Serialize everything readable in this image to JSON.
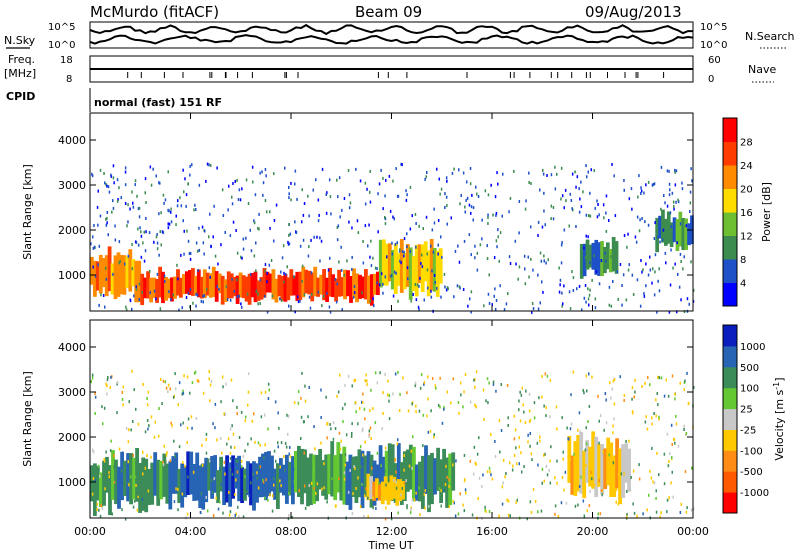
{
  "header": {
    "title": "McMurdo (fitACF)",
    "beam": "Beam 09",
    "date": "09/Aug/2013"
  },
  "noise_panel": {
    "left_label": "N.Sky",
    "right_label": "N.Search",
    "left_ticks": [
      "10^5",
      "10^0"
    ],
    "right_ticks": [
      "10^5",
      "10^0"
    ]
  },
  "freq_panel": {
    "left_label_1": "Freq.",
    "left_label_2": "[MHz]",
    "left_ticks": [
      "18",
      "8"
    ],
    "right_label": "Nave",
    "right_ticks": [
      "60",
      "0"
    ]
  },
  "cpid_panel": {
    "label": "CPID",
    "text": "normal (fast) 151 RF"
  },
  "x_axis": {
    "title": "Time UT",
    "ticks": [
      "00:00",
      "04:00",
      "08:00",
      "12:00",
      "16:00",
      "20:00",
      "00:00"
    ]
  },
  "chart_data": [
    {
      "type": "heatmap",
      "title": "",
      "xlabel": "Time UT",
      "ylabel": "Slant Range [km]",
      "x_range_hours": [
        0,
        24
      ],
      "ylim": [
        200,
        4600
      ],
      "y_ticks": [
        1000,
        2000,
        3000,
        4000
      ],
      "colorbar": {
        "label": "Power [dB]",
        "levels": [
          4,
          8,
          12,
          16,
          20,
          24,
          28
        ],
        "colors": [
          "#0000ff",
          "#1e50c8",
          "#3c8c50",
          "#6ebe32",
          "#ffdc00",
          "#ff8c00",
          "#ff3c00",
          "#ff0000"
        ]
      },
      "features": [
        {
          "t0": 0.0,
          "t1": 2.0,
          "r0": 500,
          "r1": 1500,
          "value": 24
        },
        {
          "t0": 2.0,
          "t1": 11.5,
          "r0": 400,
          "r1": 1100,
          "value": 28
        },
        {
          "t0": 11.5,
          "t1": 14.0,
          "r0": 600,
          "r1": 1800,
          "value": 18
        },
        {
          "t0": 19.5,
          "t1": 21.0,
          "r0": 1000,
          "r1": 1800,
          "value": 12
        },
        {
          "t0": 22.5,
          "t1": 24.0,
          "r0": 1600,
          "r1": 2400,
          "value": 10
        }
      ]
    },
    {
      "type": "heatmap",
      "title": "",
      "xlabel": "Time UT",
      "ylabel": "Slant Range [km]",
      "x_range_hours": [
        0,
        24
      ],
      "ylim": [
        200,
        4600
      ],
      "y_ticks": [
        1000,
        2000,
        3000,
        4000
      ],
      "colorbar": {
        "label": "Velocity [m s^-1]",
        "levels": [
          "1000",
          "500",
          "100",
          "25",
          "-25",
          "-100",
          "-500",
          "-1000"
        ],
        "colors": [
          "#0a1ebe",
          "#2864b4",
          "#3c8c5a",
          "#64c832",
          "#c8c8c8",
          "#ffc800",
          "#ff8c14",
          "#ff5a00",
          "#ff0000"
        ]
      },
      "features": [
        {
          "t0": 0.0,
          "t1": 3.0,
          "r0": 400,
          "r1": 1600,
          "value": 100
        },
        {
          "t0": 3.0,
          "t1": 8.0,
          "r0": 500,
          "r1": 1600,
          "value": 500
        },
        {
          "t0": 8.0,
          "t1": 14.5,
          "r0": 500,
          "r1": 1800,
          "value": 100
        },
        {
          "t0": 11.0,
          "t1": 12.5,
          "r0": 500,
          "r1": 1100,
          "value": -100
        },
        {
          "t0": 19.0,
          "t1": 21.5,
          "r0": 600,
          "r1": 2000,
          "value": -100
        }
      ]
    }
  ]
}
